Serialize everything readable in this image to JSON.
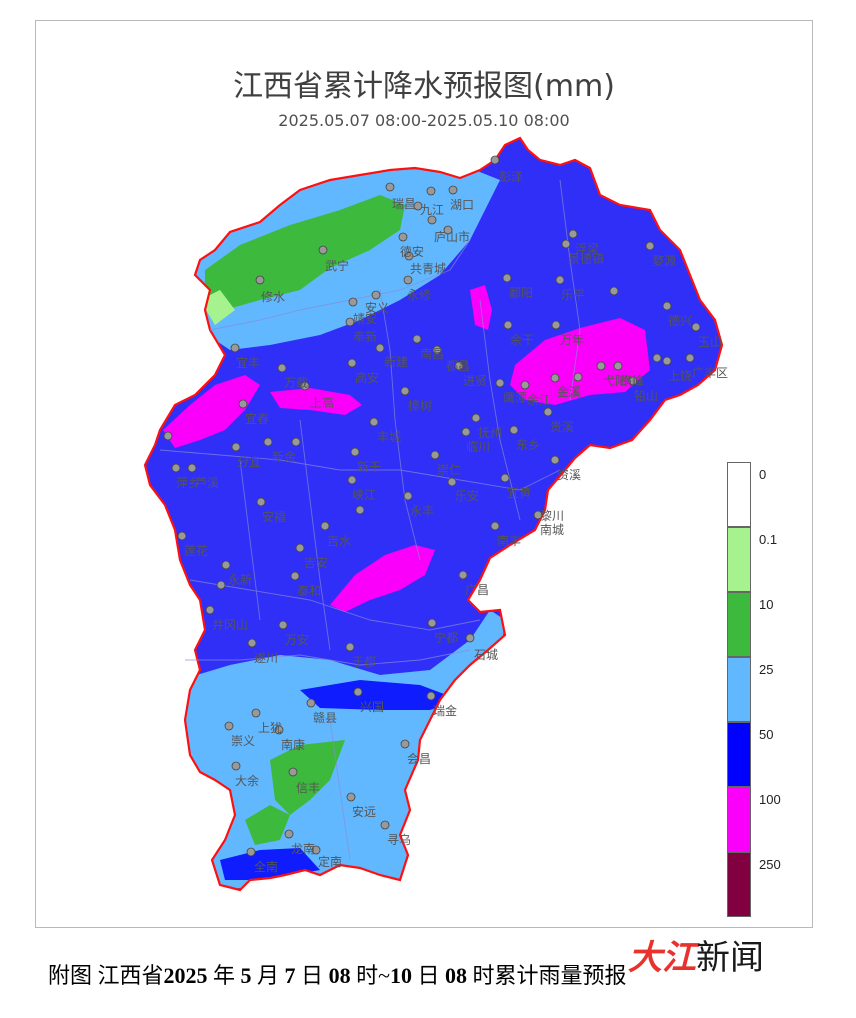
{
  "map": {
    "title": "江西省累计降水预报图(mm)",
    "subtitle": "2025.05.07 08:00-2025.05.10 08:00"
  },
  "legend": {
    "levels": [
      {
        "label": "0",
        "color": "#ffffff"
      },
      {
        "label": "0.1",
        "color": "#a6f28f"
      },
      {
        "label": "10",
        "color": "#3dba3d"
      },
      {
        "label": "25",
        "color": "#61b8ff"
      },
      {
        "label": "50",
        "color": "#0000fe"
      },
      {
        "label": "100",
        "color": "#fa00fa"
      },
      {
        "label": "250",
        "color": "#800040"
      }
    ]
  },
  "stations": [
    "彭泽",
    "瑞昌",
    "九江",
    "湖口",
    "庐山市",
    "德安",
    "共青城",
    "武宁",
    "修水",
    "永修",
    "安义",
    "靖安",
    "奉新",
    "宜丰",
    "宜春",
    "上高",
    "万载",
    "萍乡",
    "芦溪",
    "分宜",
    "新余",
    "安福",
    "吉安",
    "吉水",
    "峡江",
    "新干",
    "永丰",
    "乐安",
    "宜黄",
    "南城",
    "崇仁",
    "丰城",
    "高安",
    "樟树",
    "南昌",
    "新建",
    "进贤",
    "余干",
    "鄱阳",
    "都昌",
    "万年",
    "余江",
    "鹰潭",
    "贵溪",
    "弋阳",
    "横峰",
    "铅山",
    "上饶",
    "广丰区",
    "玉山",
    "德兴",
    "婺源",
    "浮梁",
    "乐平",
    "景德镇",
    "东乡",
    "临川",
    "抚州",
    "金溪",
    "资溪",
    "黎川",
    "南丰",
    "广昌",
    "泰和",
    "遂川",
    "万安",
    "井冈山",
    "永新",
    "莲花",
    "宁都",
    "石城",
    "于都",
    "兴国",
    "瑞金",
    "会昌",
    "赣县",
    "南康",
    "上犹",
    "崇义",
    "大余",
    "信丰",
    "安远",
    "寻乌",
    "定南",
    "全南",
    "龙南"
  ],
  "caption": {
    "prefix": "附图  江西省",
    "y": "2025",
    "t1": "年",
    "m": "5",
    "t2": "月",
    "d1": "7",
    "t3": "日",
    "h1": "08",
    "t4": "时~",
    "d2": "10",
    "t5": "日",
    "h2": "08",
    "t6": "时累计雨量预报"
  },
  "watermark": {
    "brand": "大江",
    "word": "新闻"
  }
}
